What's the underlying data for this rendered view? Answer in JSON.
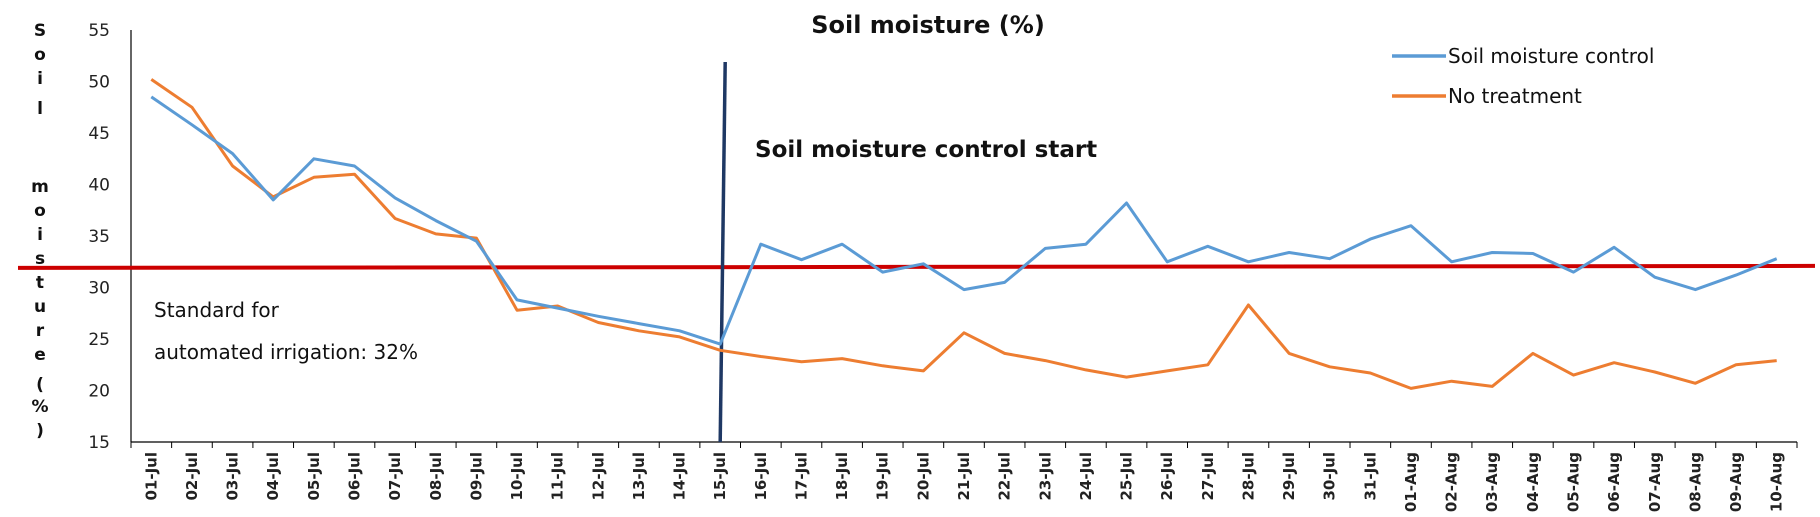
{
  "chart_data": {
    "type": "line",
    "title": "Soil moisture (%)",
    "ylabel_chars": [
      "S",
      "o",
      "i",
      "l",
      "m",
      "o",
      "i",
      "s",
      "t",
      "u",
      "r",
      "e",
      "(",
      "%",
      ")"
    ],
    "ylim": [
      15,
      55
    ],
    "yticks": [
      15,
      20,
      25,
      30,
      35,
      40,
      45,
      50,
      55
    ],
    "categories": [
      "01-Jul",
      "02-Jul",
      "03-Jul",
      "04-Jul",
      "05-Jul",
      "06-Jul",
      "07-Jul",
      "08-Jul",
      "09-Jul",
      "10-Jul",
      "11-Jul",
      "12-Jul",
      "13-Jul",
      "14-Jul",
      "15-Jul",
      "16-Jul",
      "17-Jul",
      "18-Jul",
      "19-Jul",
      "20-Jul",
      "21-Jul",
      "22-Jul",
      "23-Jul",
      "24-Jul",
      "25-Jul",
      "26-Jul",
      "27-Jul",
      "28-Jul",
      "29-Jul",
      "30-Jul",
      "31-Jul",
      "01-Aug",
      "02-Aug",
      "03-Aug",
      "04-Aug",
      "05-Aug",
      "06-Aug",
      "07-Aug",
      "08-Aug",
      "09-Aug",
      "10-Aug"
    ],
    "series": [
      {
        "name": "Soil moisture control",
        "color": "#5b9bd5",
        "values": [
          48.5,
          45.8,
          43.0,
          38.5,
          42.5,
          41.8,
          38.7,
          36.5,
          34.5,
          28.8,
          28.0,
          27.2,
          26.5,
          25.8,
          24.5,
          34.2,
          32.7,
          34.2,
          31.5,
          32.3,
          29.8,
          30.5,
          33.8,
          34.2,
          38.2,
          32.5,
          34.0,
          32.5,
          33.4,
          32.8,
          34.7,
          36.0,
          32.5,
          33.4,
          33.3,
          31.5,
          33.9,
          31.0,
          29.8,
          31.2,
          32.8
        ]
      },
      {
        "name": "No treatment",
        "color": "#ed7d31",
        "values": [
          50.2,
          47.5,
          41.8,
          38.8,
          40.7,
          41.0,
          36.7,
          35.2,
          34.8,
          27.8,
          28.2,
          26.6,
          25.8,
          25.2,
          23.9,
          23.3,
          22.8,
          23.1,
          22.4,
          21.9,
          25.6,
          23.6,
          22.9,
          22.0,
          21.3,
          21.9,
          22.5,
          28.3,
          23.6,
          22.3,
          21.7,
          20.2,
          20.9,
          20.4,
          23.6,
          21.5,
          22.7,
          21.8,
          20.7,
          22.5,
          22.9
        ]
      }
    ],
    "threshold": {
      "value": 32,
      "color": "#cc0000"
    },
    "vline": {
      "category": "15-Jul",
      "color": "#1f3864"
    },
    "annotations": {
      "control_start": "Soil  moisture control start",
      "standard_line1": "Standard  for",
      "standard_line2": "automated  irrigation:  32%"
    },
    "legend_position": "top-right",
    "grid": false
  }
}
